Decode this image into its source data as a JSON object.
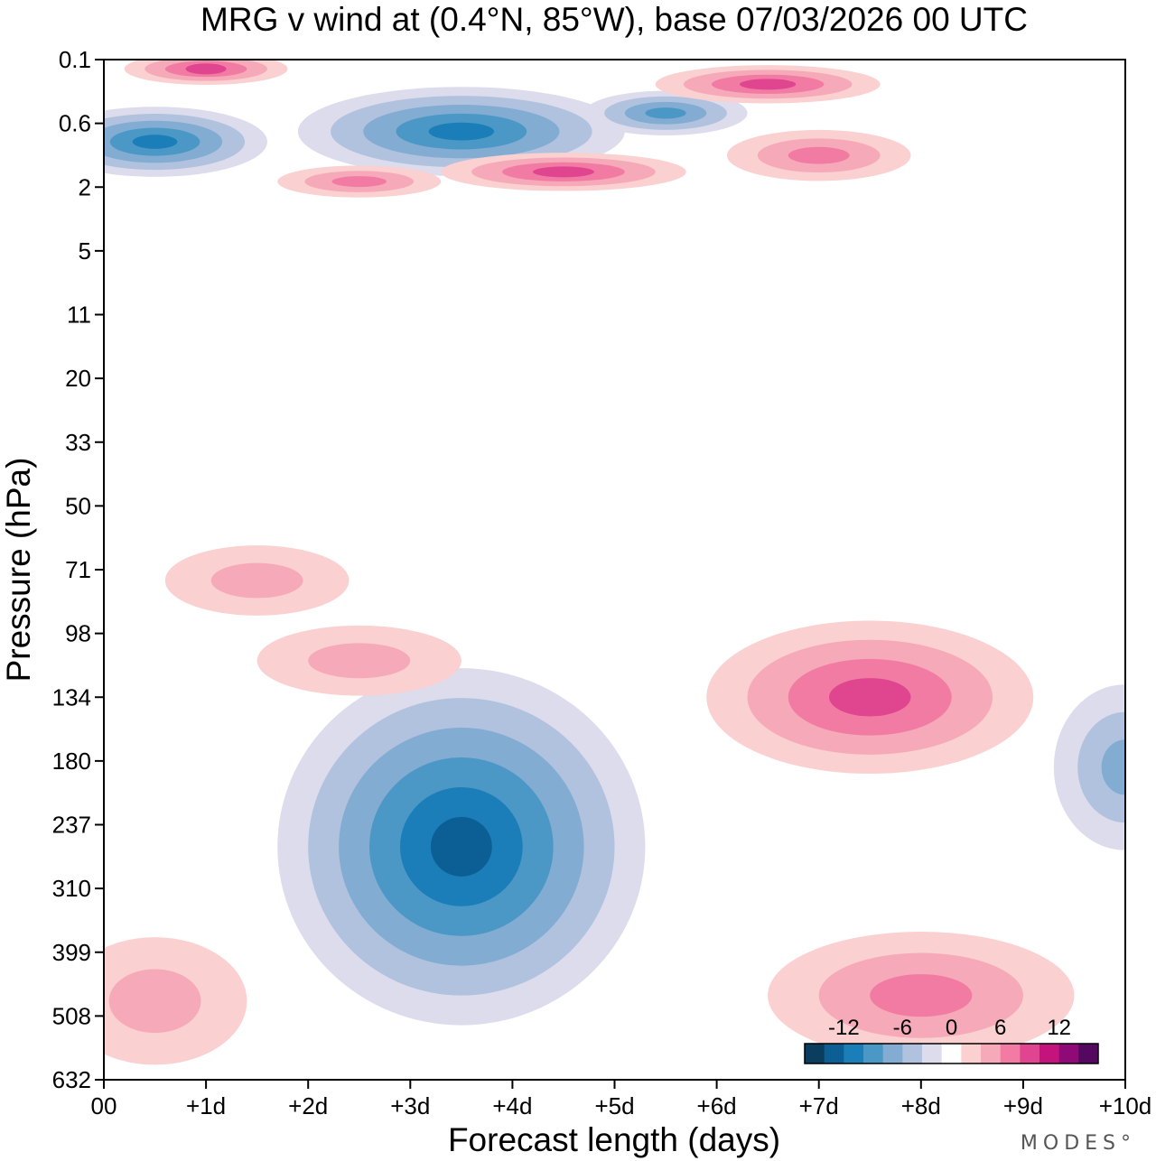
{
  "chart_data": {
    "type": "contour",
    "title": "MRG v wind at (0.4°N, 85°W),  base 07/03/2026  00 UTC",
    "xlabel": "Forecast length (days)",
    "ylabel": "Pressure (hPa)",
    "x_ticks": [
      "00",
      "+1d",
      "+2d",
      "+3d",
      "+4d",
      "+5d",
      "+6d",
      "+7d",
      "+8d",
      "+9d",
      "+10d"
    ],
    "x_range_days": [
      0,
      10
    ],
    "y_ticks": [
      "0.1",
      "0.6",
      "2",
      "5",
      "11",
      "20",
      "33",
      "50",
      "71",
      "98",
      "134",
      "180",
      "237",
      "310",
      "399",
      "508",
      "632"
    ],
    "colorbar": {
      "levels": [
        -14,
        -12,
        -10,
        -8,
        -6,
        -4,
        -2,
        2,
        4,
        6,
        8,
        10,
        12,
        14
      ],
      "labels": [
        "-12",
        "-6",
        "0",
        "6",
        "12"
      ],
      "label_values": [
        -12,
        -6,
        0,
        6,
        12
      ],
      "colors": [
        "#0a3d5e",
        "#0b5f95",
        "#1b7eb8",
        "#4b98c6",
        "#82acd2",
        "#b1c2de",
        "#dcdced",
        "#ffffff",
        "#fad0d0",
        "#f6a9b8",
        "#f27ba4",
        "#e0468f",
        "#c4137c",
        "#8f0a76",
        "#54085f"
      ]
    },
    "features": [
      {
        "kind": "min",
        "center_day": 3.5,
        "center_hpa": 260,
        "value": -13
      },
      {
        "kind": "max",
        "center_day": 7.5,
        "center_hpa": 134,
        "value": 9
      },
      {
        "kind": "max",
        "center_day": 8.0,
        "center_hpa": 470,
        "value": 7
      },
      {
        "kind": "max",
        "center_day": 0.5,
        "center_hpa": 480,
        "value": 4
      },
      {
        "kind": "max",
        "center_day": 2.5,
        "center_hpa": 112,
        "value": 4
      },
      {
        "kind": "max",
        "center_day": 1.5,
        "center_hpa": 75,
        "value": 4
      },
      {
        "kind": "min",
        "center_day": 10.0,
        "center_hpa": 185,
        "value": -6
      },
      {
        "kind": "min",
        "center_day": 0.5,
        "center_hpa": 0.85,
        "value": -10
      },
      {
        "kind": "min",
        "center_day": 3.5,
        "center_hpa": 0.7,
        "value": -10
      },
      {
        "kind": "min",
        "center_day": 5.5,
        "center_hpa": 0.45,
        "value": -8
      },
      {
        "kind": "max",
        "center_day": 1.0,
        "center_hpa": 0.13,
        "value": 8
      },
      {
        "kind": "max",
        "center_day": 6.5,
        "center_hpa": 0.2,
        "value": 8
      },
      {
        "kind": "max",
        "center_day": 4.5,
        "center_hpa": 1.5,
        "value": 8
      },
      {
        "kind": "max",
        "center_day": 2.5,
        "center_hpa": 1.8,
        "value": 6
      },
      {
        "kind": "max",
        "center_day": 7.0,
        "center_hpa": 1.1,
        "value": 6
      }
    ]
  },
  "branding": {
    "logo_text": "MODES°"
  }
}
